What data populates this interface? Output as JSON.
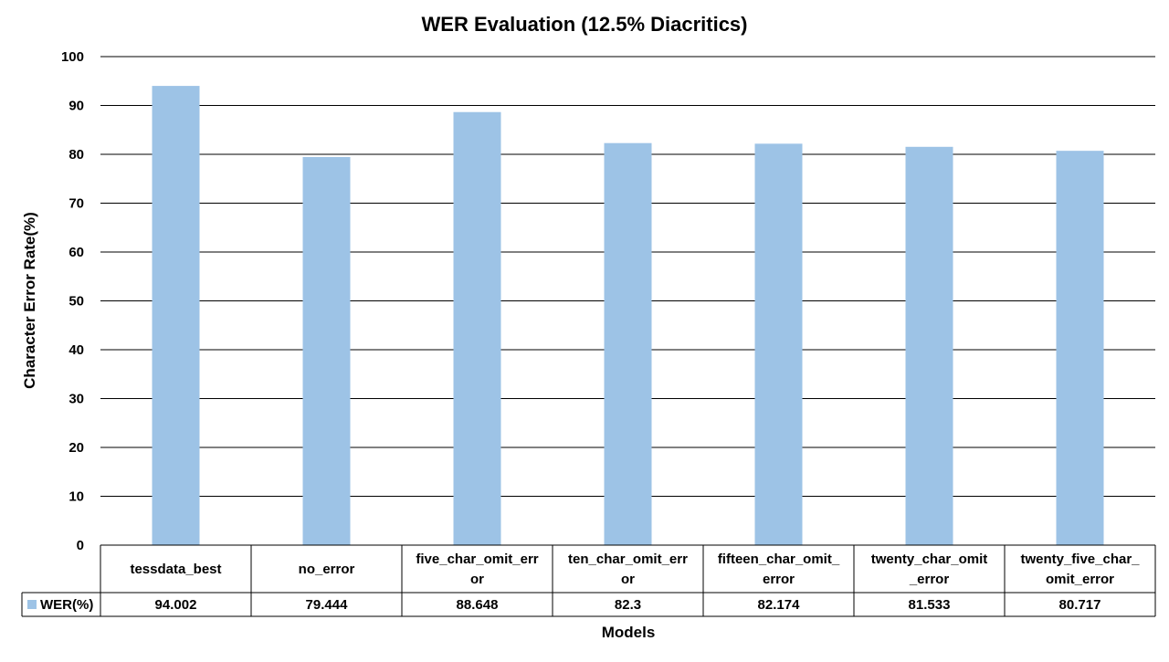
{
  "colors": {
    "bar": "#9dc3e6",
    "grid": "#000000",
    "background": "#ffffff"
  },
  "chart_data": {
    "type": "bar",
    "title": "WER Evaluation (12.5% Diacritics)",
    "xlabel": "Models",
    "ylabel": "Character Error Rate(%)",
    "ylim": [
      0,
      100
    ],
    "yticks": [
      0,
      10,
      20,
      30,
      40,
      50,
      60,
      70,
      80,
      90,
      100
    ],
    "grid": true,
    "legend": "left of data table",
    "categories": [
      "tessdata_best",
      "no_error",
      "five_char_omit_error",
      "ten_char_omit_error",
      "fifteen_char_omit_error",
      "twenty_char_omit_error",
      "twenty_five_char_omit_error"
    ],
    "category_lines": [
      [
        "tessdata_best"
      ],
      [
        "no_error"
      ],
      [
        "five_char_omit_err",
        "or"
      ],
      [
        "ten_char_omit_err",
        "or"
      ],
      [
        "fifteen_char_omit_",
        "error"
      ],
      [
        "twenty_char_omit",
        "_error"
      ],
      [
        "twenty_five_char_",
        "omit_error"
      ]
    ],
    "series": [
      {
        "name": "WER(%)",
        "values": [
          94.002,
          79.444,
          88.648,
          82.3,
          82.174,
          81.533,
          80.717
        ],
        "labels": [
          "94.002",
          "79.444",
          "88.648",
          "82.3",
          "82.174",
          "81.533",
          "80.717"
        ]
      }
    ]
  }
}
